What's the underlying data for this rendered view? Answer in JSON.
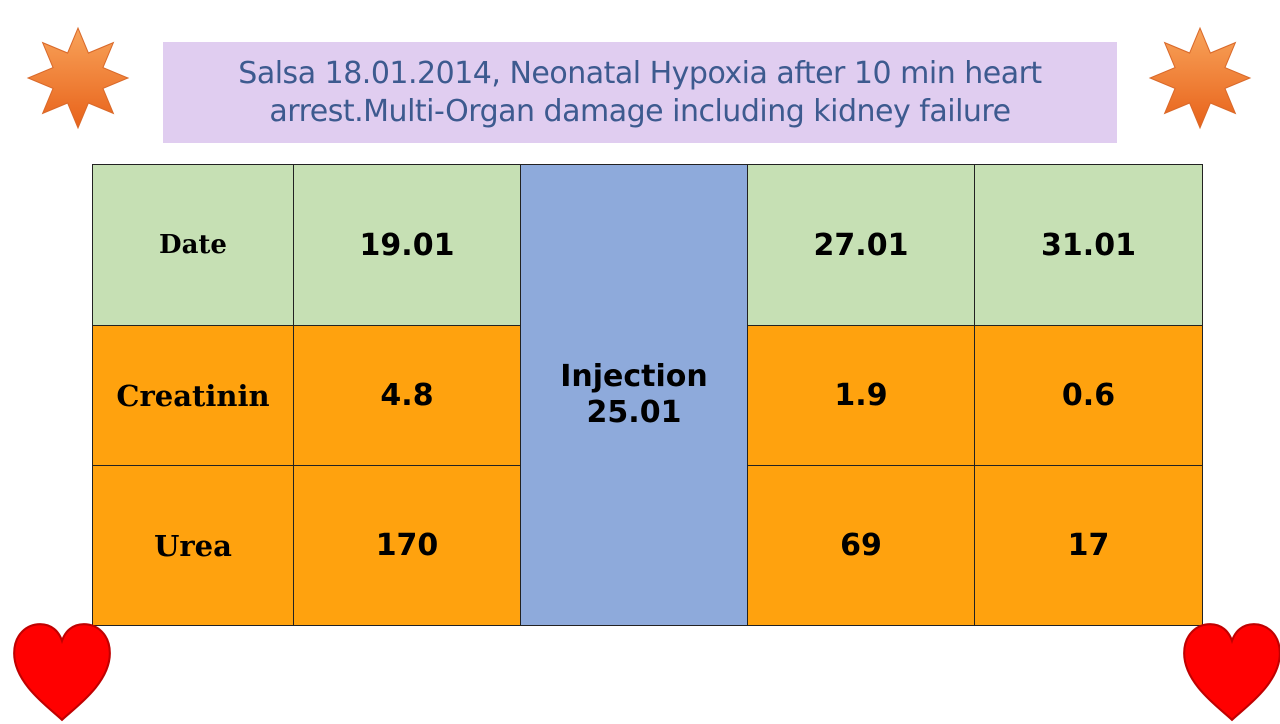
{
  "title": {
    "line1": "Salsa 18.01.2014, Neonatal Hypoxia after 10 min heart",
    "line2": "arrest.Multi-Organ damage including kidney failure"
  },
  "decorations": {
    "star_icon": "star-icon",
    "heart_icon": "heart-icon",
    "star_color": "#f07a2a",
    "heart_color": "#ff0000"
  },
  "table": {
    "header": {
      "label": "Date",
      "dates": [
        "19.01",
        "27.01",
        "31.01"
      ]
    },
    "injection": {
      "line1": "Injection",
      "line2": "25.01",
      "color": "#8eaadb"
    },
    "rows": [
      {
        "label": "Creatinin",
        "values": [
          "4.8",
          "1.9",
          "0.6"
        ]
      },
      {
        "label": "Urea",
        "values": [
          "170",
          "69",
          "17"
        ]
      }
    ],
    "colors": {
      "header_bg": "#c6e0b4",
      "body_bg": "#ffa20e"
    }
  }
}
